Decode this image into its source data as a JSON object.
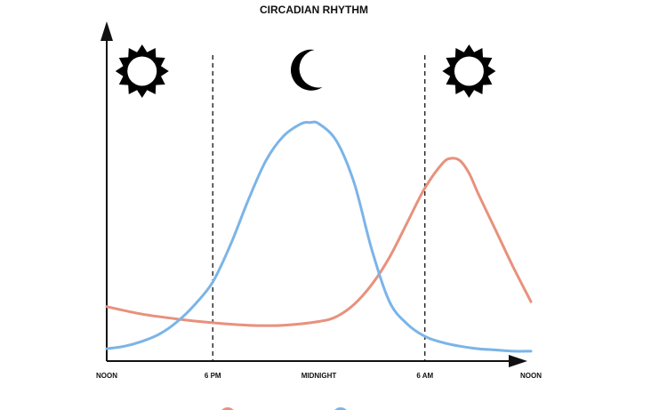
{
  "chart_data": {
    "type": "line",
    "title": "CIRCADIAN RHYTHM",
    "xlabel": "",
    "ylabel": "",
    "x_ticks": [
      "NOON",
      "6 PM",
      "MIDNIGHT",
      "6 AM",
      "NOON"
    ],
    "x_tick_hours": [
      0,
      6,
      12,
      18,
      24
    ],
    "vertical_markers_hours": [
      6,
      18
    ],
    "icons": [
      {
        "name": "sun-icon",
        "at_hour": 2
      },
      {
        "name": "moon-icon",
        "at_hour": 11.5
      },
      {
        "name": "sun-icon",
        "at_hour": 20.5
      }
    ],
    "ylim": [
      0,
      100
    ],
    "xlim": [
      0,
      24
    ],
    "series": [
      {
        "color": "#e8917d",
        "x": [
          0,
          2,
          4,
          6,
          8,
          10,
          12,
          13,
          14,
          15,
          16,
          17,
          18,
          19,
          19.5,
          20,
          20.5,
          21,
          22,
          23,
          24
        ],
        "values": [
          22,
          19,
          17,
          15.5,
          14.5,
          14.5,
          16,
          18,
          23,
          31,
          42,
          56,
          70,
          80,
          82,
          81,
          76,
          68,
          53,
          38,
          24
        ]
      },
      {
        "color": "#7bb4e8",
        "x": [
          0,
          1,
          2,
          3,
          4,
          5,
          6,
          7,
          8,
          9,
          10,
          11,
          11.5,
          12,
          13,
          14,
          15,
          16,
          17,
          18,
          19,
          20,
          21,
          22,
          23,
          24
        ],
        "values": [
          5,
          6,
          8,
          11,
          16,
          23,
          32,
          47,
          65,
          81,
          91,
          96,
          96.5,
          96,
          89,
          72,
          45,
          24,
          15,
          10,
          7.5,
          6,
          5,
          4.5,
          4,
          4
        ]
      }
    ],
    "legend": "bottom",
    "grid": false
  }
}
